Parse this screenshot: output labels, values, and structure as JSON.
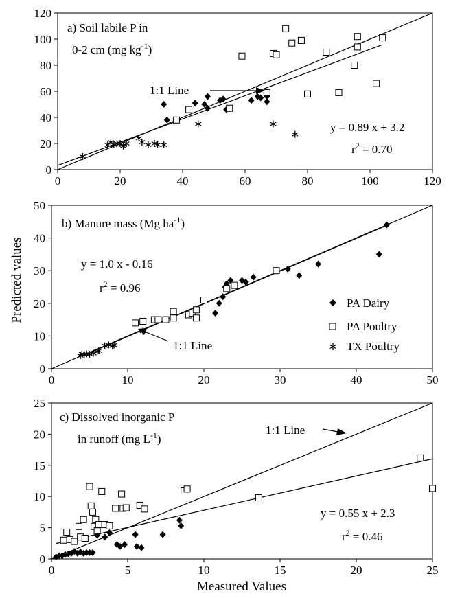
{
  "figure": {
    "ylabel": "Predicted values",
    "xlabel": "Measured Values",
    "legend": {
      "items": [
        {
          "label": "PA Dairy",
          "marker": "diamond"
        },
        {
          "label": "PA Poultry",
          "marker": "square-open"
        },
        {
          "label": "TX Poultry",
          "marker": "asterisk"
        }
      ]
    }
  },
  "chart_data": [
    {
      "type": "scatter",
      "panel": "a",
      "title_lines": [
        "a) Soil labile P in",
        "0-2 cm (mg kg",
        "-1",
        ")"
      ],
      "xlim": [
        0,
        120
      ],
      "ylim": [
        0,
        120
      ],
      "xticks": [
        0,
        20,
        40,
        60,
        80,
        100,
        120
      ],
      "yticks": [
        0,
        20,
        40,
        60,
        80,
        100,
        120
      ],
      "one_to_one_label": "1:1 Line",
      "equation": "y = 0.89 x + 3.2",
      "r2_value": " = 0.70",
      "fit": {
        "slope": 0.89,
        "intercept": 3.2,
        "x_range": [
          0,
          104
        ]
      },
      "series": [
        {
          "name": "PA Dairy",
          "marker": "diamond",
          "points": [
            [
              34,
              50
            ],
            [
              35,
              38
            ],
            [
              44,
              51
            ],
            [
              47,
              50
            ],
            [
              48,
              47
            ],
            [
              48,
              56
            ],
            [
              52,
              53
            ],
            [
              53,
              54
            ],
            [
              54,
              46
            ],
            [
              62,
              53
            ],
            [
              64,
              56
            ],
            [
              65,
              55
            ],
            [
              67,
              56
            ],
            [
              67,
              52
            ]
          ]
        },
        {
          "name": "PA Poultry",
          "marker": "square-open",
          "points": [
            [
              38,
              38
            ],
            [
              42,
              46
            ],
            [
              55,
              47
            ],
            [
              59,
              87
            ],
            [
              67,
              59
            ],
            [
              69,
              89
            ],
            [
              70,
              88
            ],
            [
              73,
              108
            ],
            [
              75,
              97
            ],
            [
              78,
              99
            ],
            [
              80,
              58
            ],
            [
              86,
              90
            ],
            [
              90,
              59
            ],
            [
              95,
              80
            ],
            [
              96,
              102
            ],
            [
              96,
              94
            ],
            [
              102,
              66
            ],
            [
              104,
              101
            ]
          ]
        },
        {
          "name": "TX Poultry",
          "marker": "asterisk",
          "points": [
            [
              8,
              10
            ],
            [
              16,
              19
            ],
            [
              17,
              21
            ],
            [
              18,
              19
            ],
            [
              19,
              20
            ],
            [
              20,
              20
            ],
            [
              21,
              18
            ],
            [
              22,
              20
            ],
            [
              26,
              24
            ],
            [
              27,
              21
            ],
            [
              29,
              19
            ],
            [
              31,
              20
            ],
            [
              32,
              19
            ],
            [
              34,
              19
            ],
            [
              45,
              35
            ],
            [
              69,
              35
            ],
            [
              76,
              27
            ]
          ]
        }
      ]
    },
    {
      "type": "scatter",
      "panel": "b",
      "title_prefix": "b) Manure mass (Mg ha",
      "title_sup": "-1",
      "title_suffix": ")",
      "xlim": [
        0,
        50
      ],
      "ylim": [
        0,
        50
      ],
      "xticks": [
        0,
        10,
        20,
        30,
        40,
        50
      ],
      "yticks": [
        0,
        10,
        20,
        30,
        40,
        50
      ],
      "one_to_one_label": "1:1 Line",
      "equation": "y = 1.0 x - 0.16",
      "r2_value": " = 0.96",
      "fit": {
        "slope": 1.0,
        "intercept": -0.16,
        "x_range": [
          4,
          44
        ]
      },
      "series": [
        {
          "name": "PA Dairy",
          "marker": "diamond",
          "points": [
            [
              21.5,
              17
            ],
            [
              22,
              20
            ],
            [
              22.5,
              22
            ],
            [
              22.8,
              25
            ],
            [
              23,
              26
            ],
            [
              23.5,
              27
            ],
            [
              25,
              27
            ],
            [
              25.5,
              26.5
            ],
            [
              26.5,
              28
            ],
            [
              29.5,
              30
            ],
            [
              31,
              30.5
            ],
            [
              32.5,
              28.5
            ],
            [
              35,
              32
            ],
            [
              43,
              35
            ],
            [
              44,
              44
            ]
          ]
        },
        {
          "name": "PA Poultry",
          "marker": "square-open",
          "points": [
            [
              11,
              14
            ],
            [
              12,
              14.5
            ],
            [
              13.5,
              15
            ],
            [
              14,
              15
            ],
            [
              15,
              15
            ],
            [
              16,
              15.5
            ],
            [
              16,
              17.5
            ],
            [
              18,
              16.5
            ],
            [
              18.5,
              17
            ],
            [
              19,
              18
            ],
            [
              19,
              15.5
            ],
            [
              20,
              21
            ],
            [
              23,
              24.5
            ],
            [
              24,
              25.5
            ],
            [
              29.5,
              30
            ]
          ]
        },
        {
          "name": "TX Poultry",
          "marker": "asterisk",
          "points": [
            [
              3.8,
              4
            ],
            [
              4,
              4.5
            ],
            [
              4.3,
              4.3
            ],
            [
              4.6,
              4.5
            ],
            [
              5,
              4.4
            ],
            [
              5.5,
              4.7
            ],
            [
              6,
              5.2
            ],
            [
              6.2,
              5.5
            ],
            [
              7,
              7
            ],
            [
              7.5,
              7.3
            ],
            [
              8,
              7
            ],
            [
              8.2,
              7.2
            ],
            [
              12,
              11.5
            ]
          ]
        }
      ]
    },
    {
      "type": "scatter",
      "panel": "c",
      "title_line1": "c) Dissolved inorganic P",
      "title_prefix": "in runoff (mg L",
      "title_sup": "-1",
      "title_suffix": ")",
      "xlim": [
        0,
        25
      ],
      "ylim": [
        0,
        25
      ],
      "xticks": [
        0,
        5,
        10,
        15,
        20,
        25
      ],
      "yticks": [
        0,
        5,
        10,
        15,
        20,
        25
      ],
      "one_to_one_label": "1:1 Line",
      "equation": "y = 0.55 x + 2.3",
      "r2_value": " = 0.46",
      "fit": {
        "slope": 0.55,
        "intercept": 2.3,
        "x_range": [
          0.3,
          25
        ]
      },
      "series": [
        {
          "name": "PA Dairy",
          "marker": "diamond",
          "points": [
            [
              0.3,
              0.3
            ],
            [
              0.5,
              0.5
            ],
            [
              0.7,
              0.5
            ],
            [
              0.9,
              0.7
            ],
            [
              1.1,
              0.8
            ],
            [
              1.3,
              0.9
            ],
            [
              1.5,
              1.2
            ],
            [
              1.7,
              0.9
            ],
            [
              1.9,
              1.1
            ],
            [
              2.1,
              0.9
            ],
            [
              2.3,
              1.0
            ],
            [
              2.5,
              1.0
            ],
            [
              2.7,
              1.0
            ],
            [
              3.0,
              3.8
            ],
            [
              3.5,
              3.5
            ],
            [
              3.8,
              4.2
            ],
            [
              4.3,
              2.3
            ],
            [
              4.5,
              2.0
            ],
            [
              4.8,
              2.3
            ],
            [
              5.5,
              3.9
            ],
            [
              5.6,
              2.0
            ],
            [
              5.9,
              1.8
            ],
            [
              7.3,
              3.9
            ],
            [
              8.4,
              6.2
            ],
            [
              8.5,
              5.3
            ]
          ]
        },
        {
          "name": "PA Poultry",
          "marker": "square-open",
          "points": [
            [
              0.8,
              3.0
            ],
            [
              1.0,
              4.3
            ],
            [
              1.2,
              3.1
            ],
            [
              1.5,
              2.8
            ],
            [
              1.8,
              5.2
            ],
            [
              1.9,
              3.5
            ],
            [
              2.1,
              6.3
            ],
            [
              2.2,
              3.3
            ],
            [
              2.5,
              11.6
            ],
            [
              2.6,
              8.5
            ],
            [
              2.7,
              7.5
            ],
            [
              2.8,
              5.2
            ],
            [
              2.9,
              6.3
            ],
            [
              3.0,
              4.5
            ],
            [
              3.1,
              5.5
            ],
            [
              3.3,
              10.8
            ],
            [
              3.5,
              5.5
            ],
            [
              3.8,
              5.3
            ],
            [
              4.2,
              8.1
            ],
            [
              4.6,
              10.4
            ],
            [
              4.7,
              8.1
            ],
            [
              4.9,
              8.2
            ],
            [
              5.8,
              8.6
            ],
            [
              6.1,
              8.0
            ],
            [
              8.7,
              10.9
            ],
            [
              8.9,
              11.2
            ],
            [
              13.6,
              9.8
            ],
            [
              24.2,
              16.2
            ],
            [
              25,
              11.3
            ]
          ]
        },
        {
          "name": "TX Poultry",
          "marker": "asterisk",
          "points": []
        }
      ]
    }
  ]
}
